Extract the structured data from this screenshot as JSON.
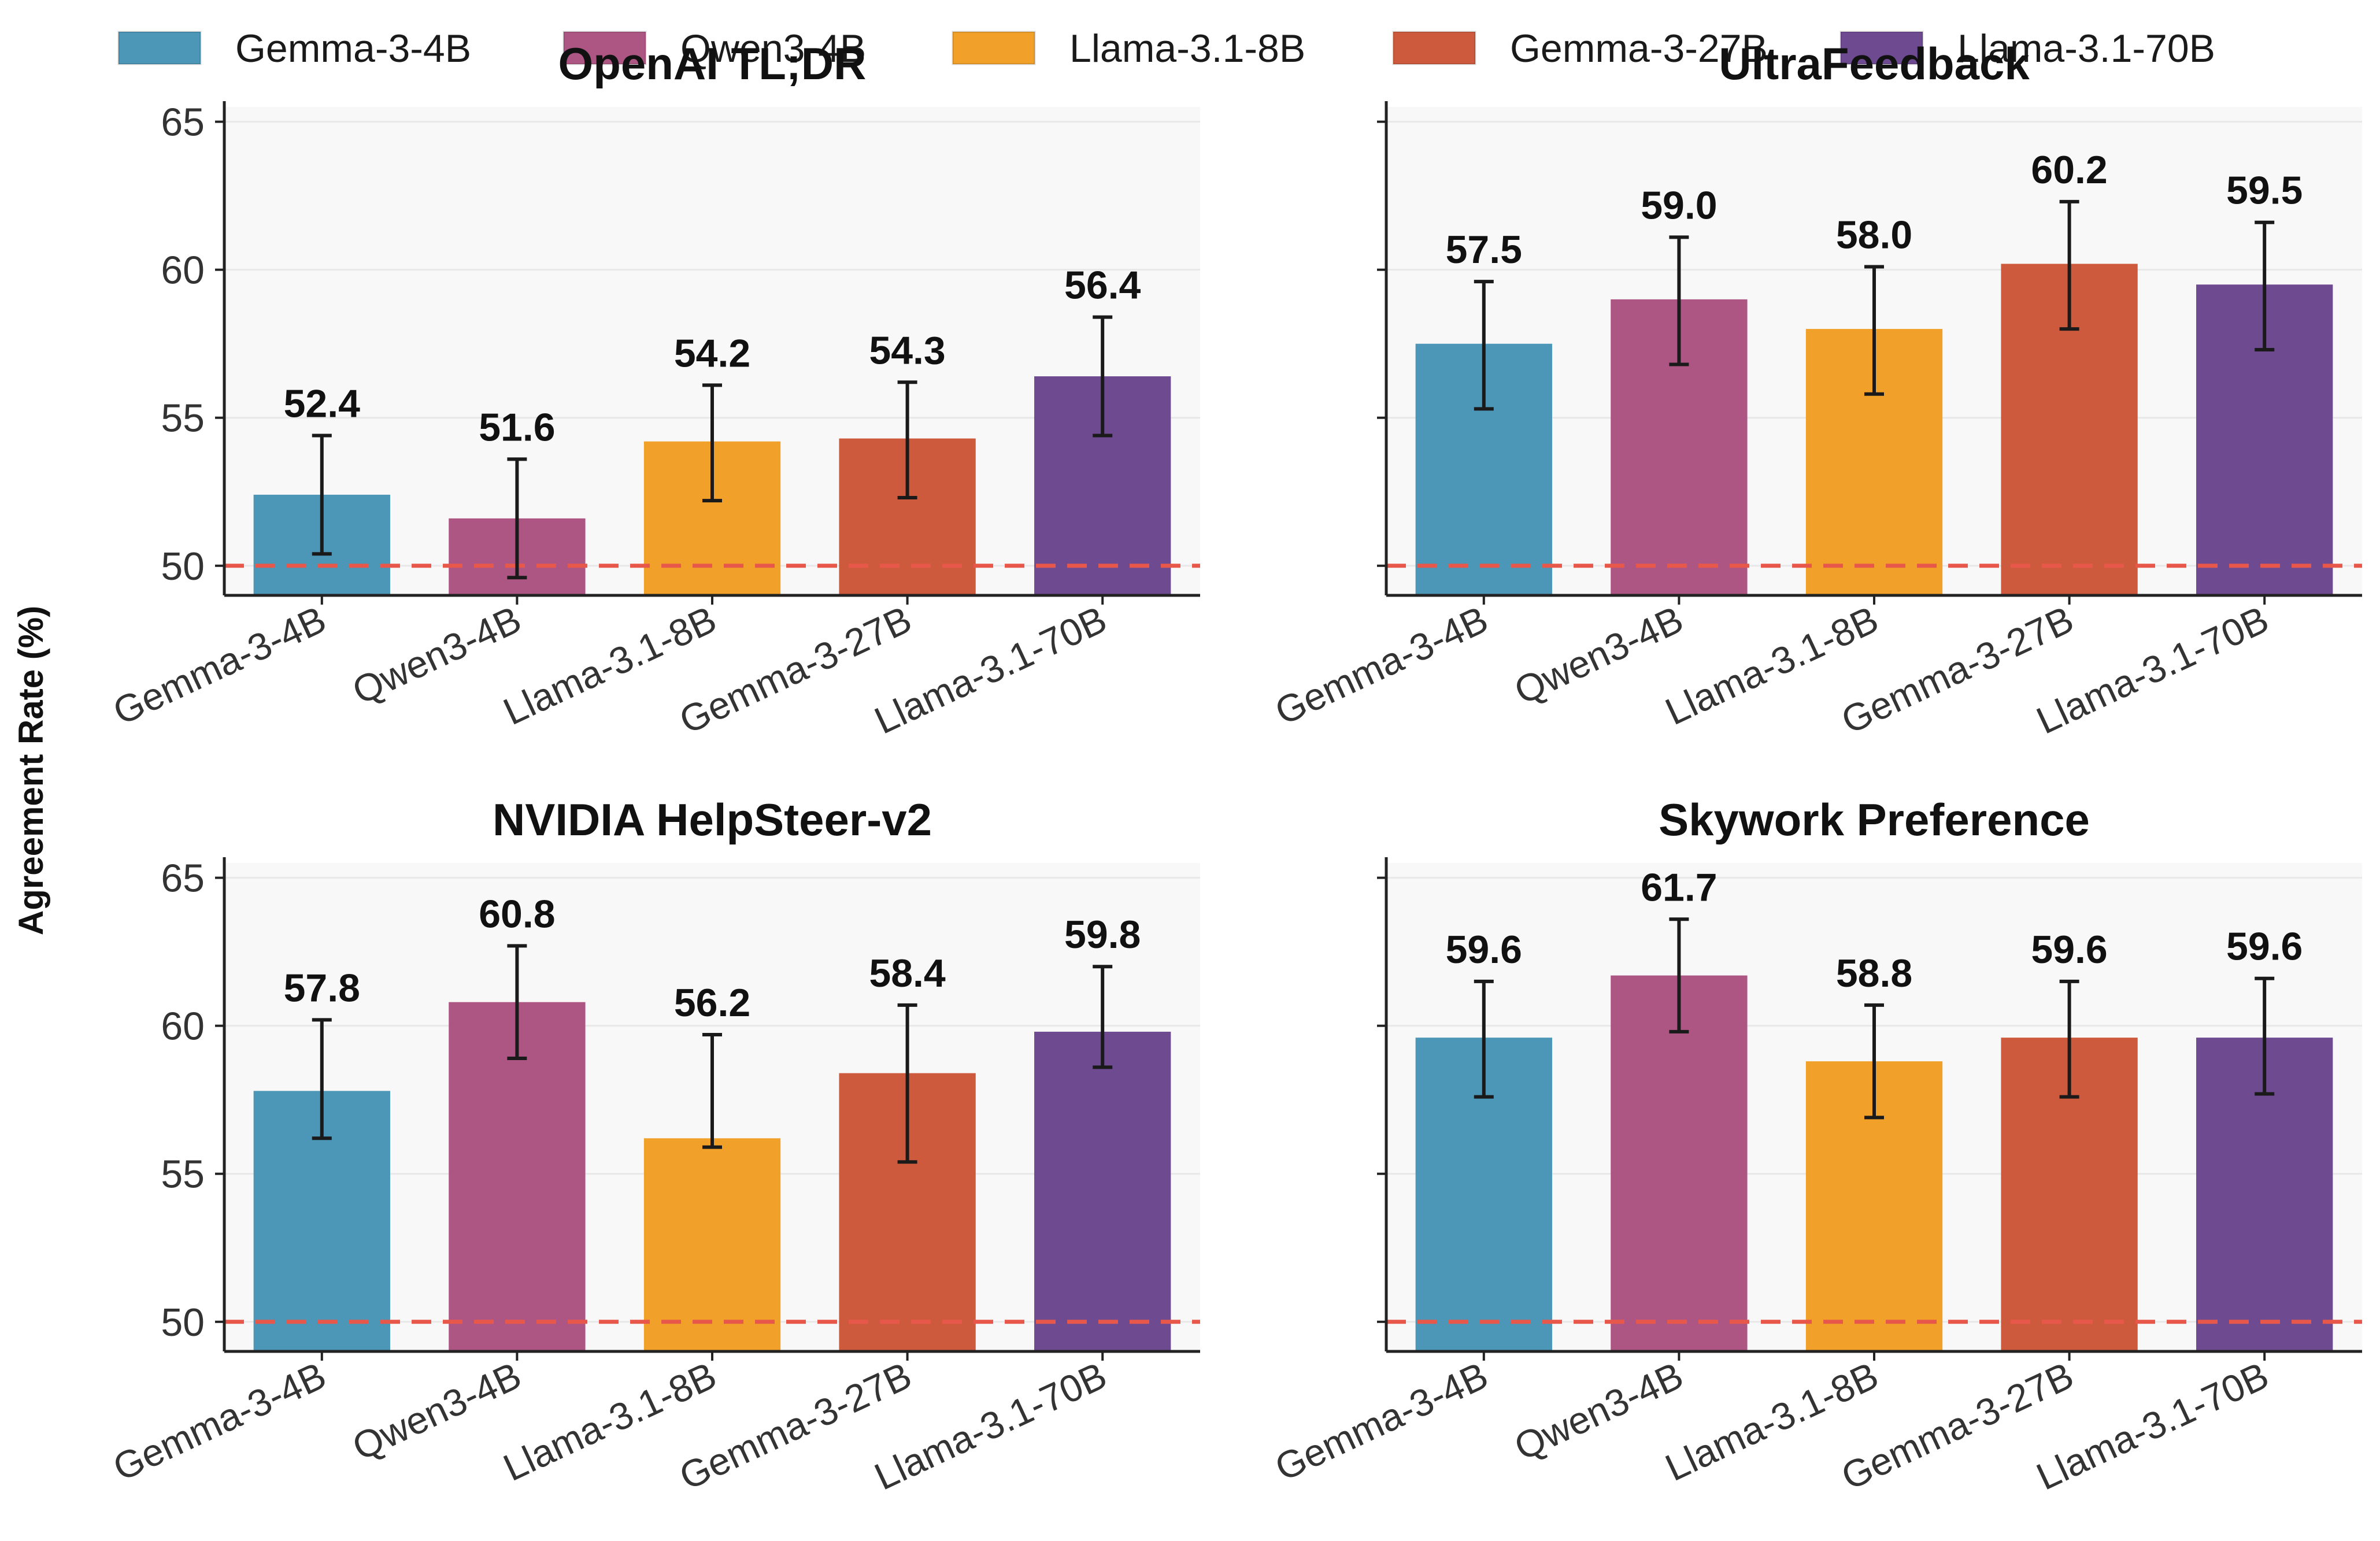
{
  "legend": [
    {
      "label": "Gemma-3-4B",
      "color": "#4C96B7"
    },
    {
      "label": "Qwen3-4B",
      "color": "#AE5683"
    },
    {
      "label": "Llama-3.1-8B",
      "color": "#F1A02A"
    },
    {
      "label": "Gemma-3-27B",
      "color": "#CE5A3E"
    },
    {
      "label": "Llama-3.1-70B",
      "color": "#6E4A91"
    }
  ],
  "ylabel": "Agreement Rate (%)",
  "chart_data": [
    {
      "type": "bar",
      "title": "OpenAI TL;DR",
      "categories": [
        "Gemma-3-4B",
        "Qwen3-4B",
        "Llama-3.1-8B",
        "Gemma-3-27B",
        "Llama-3.1-70B"
      ],
      "values": [
        52.4,
        51.6,
        54.2,
        54.3,
        56.4
      ],
      "value_labels": [
        "52.4",
        "51.6",
        "54.2",
        "54.3",
        "56.4"
      ],
      "error_low": [
        50.4,
        49.6,
        52.2,
        52.3,
        54.4
      ],
      "error_high": [
        54.4,
        53.6,
        56.1,
        56.2,
        58.4
      ],
      "ylim": [
        49,
        65.5
      ],
      "yticks": [
        "50",
        "55",
        "60",
        "65"
      ],
      "reference_line": 50,
      "grid": true
    },
    {
      "type": "bar",
      "title": "UltraFeedback",
      "categories": [
        "Gemma-3-4B",
        "Qwen3-4B",
        "Llama-3.1-8B",
        "Gemma-3-27B",
        "Llama-3.1-70B"
      ],
      "values": [
        57.5,
        59.0,
        58.0,
        60.2,
        59.5
      ],
      "value_labels": [
        "57.5",
        "59.0",
        "58.0",
        "60.2",
        "59.5"
      ],
      "error_low": [
        55.3,
        56.8,
        55.8,
        58.0,
        57.3
      ],
      "error_high": [
        59.6,
        61.1,
        60.1,
        62.3,
        61.6
      ],
      "ylim": [
        49,
        65.5
      ],
      "yticks": [
        "50",
        "55",
        "60",
        "65"
      ],
      "reference_line": 50,
      "grid": true
    },
    {
      "type": "bar",
      "title": "NVIDIA HelpSteer-v2",
      "categories": [
        "Gemma-3-4B",
        "Qwen3-4B",
        "Llama-3.1-8B",
        "Gemma-3-27B",
        "Llama-3.1-70B"
      ],
      "values": [
        57.8,
        60.8,
        56.2,
        58.4,
        59.8
      ],
      "value_labels": [
        "57.8",
        "60.8",
        "56.2",
        "58.4",
        "59.8"
      ],
      "error_low": [
        56.2,
        58.9,
        55.9,
        55.4,
        58.6
      ],
      "error_high": [
        60.2,
        62.7,
        59.7,
        60.7,
        62.0
      ],
      "ylim": [
        49,
        65.5
      ],
      "yticks": [
        "50",
        "55",
        "60",
        "65"
      ],
      "reference_line": 50,
      "grid": true
    },
    {
      "type": "bar",
      "title": "Skywork Preference",
      "categories": [
        "Gemma-3-4B",
        "Qwen3-4B",
        "Llama-3.1-8B",
        "Gemma-3-27B",
        "Llama-3.1-70B"
      ],
      "values": [
        59.6,
        61.7,
        58.8,
        59.6,
        59.6
      ],
      "value_labels": [
        "59.6",
        "61.7",
        "58.8",
        "59.6",
        "59.6"
      ],
      "error_low": [
        57.6,
        59.8,
        56.9,
        57.6,
        57.7
      ],
      "error_high": [
        61.5,
        63.6,
        60.7,
        61.5,
        61.6
      ],
      "ylim": [
        49,
        65.5
      ],
      "yticks": [
        "50",
        "55",
        "60",
        "65"
      ],
      "reference_line": 50,
      "grid": true
    }
  ],
  "colors": {
    "panel_background": "#F8F8F8",
    "grid": "#E8E8E8",
    "reference_line": "#E8584A",
    "axis": "#222222",
    "error_bar": "#1a1a1a"
  }
}
